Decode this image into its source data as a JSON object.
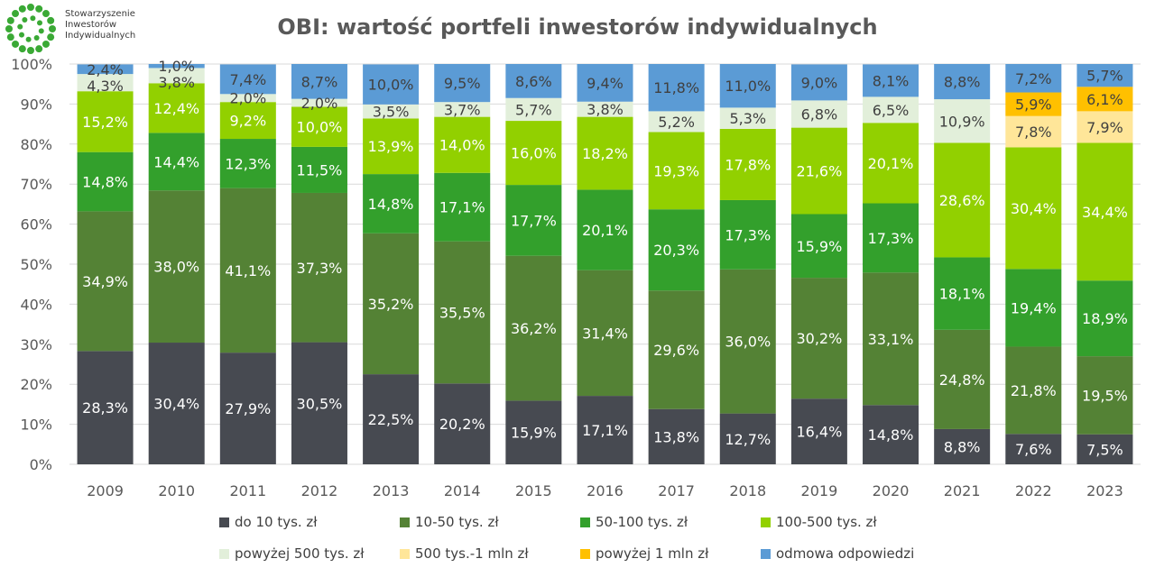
{
  "logo": {
    "text": "Stowarzyszenie Inwestorów Indywidualnych",
    "lines": [
      "Stowarzyszenie",
      "Inwestorów",
      "Indywidualnych"
    ]
  },
  "chart_data": {
    "type": "bar",
    "stacked": true,
    "title": "OBI: wartość portfeli inwestorów indywidualnych",
    "xlabel": "",
    "ylabel": "",
    "ylim": [
      0,
      100
    ],
    "yticks": [
      "0%",
      "10%",
      "20%",
      "30%",
      "40%",
      "50%",
      "60%",
      "70%",
      "80%",
      "90%",
      "100%"
    ],
    "grid": true,
    "legend_position": "bottom",
    "categories": [
      "2009",
      "2010",
      "2011",
      "2012",
      "2013",
      "2014",
      "2015",
      "2016",
      "2017",
      "2018",
      "2019",
      "2020",
      "2021",
      "2022",
      "2023"
    ],
    "series": [
      {
        "name": "do 10 tys. zł",
        "color": "#474a51",
        "label_color": "#ffffff",
        "values": [
          28.3,
          30.4,
          27.9,
          30.5,
          22.5,
          20.2,
          15.9,
          17.1,
          13.8,
          12.7,
          16.4,
          14.8,
          8.8,
          7.6,
          7.5
        ]
      },
      {
        "name": "10-50 tys. zł",
        "color": "#548235",
        "label_color": "#ffffff",
        "values": [
          34.9,
          38.0,
          41.1,
          37.3,
          35.2,
          35.5,
          36.2,
          31.4,
          29.6,
          36.0,
          30.2,
          33.1,
          24.8,
          21.8,
          19.5
        ]
      },
      {
        "name": "50-100 tys. zł",
        "color": "#33a02c",
        "label_color": "#ffffff",
        "values": [
          14.8,
          14.4,
          12.3,
          11.5,
          14.8,
          17.1,
          17.7,
          20.1,
          20.3,
          17.3,
          15.9,
          17.3,
          18.1,
          19.4,
          18.9
        ]
      },
      {
        "name": "100-500 tys. zł",
        "color": "#92d000",
        "label_color": "#ffffff",
        "values": [
          15.2,
          12.4,
          9.2,
          10.0,
          13.9,
          14.0,
          16.0,
          18.2,
          19.3,
          17.8,
          21.6,
          20.1,
          28.6,
          30.4,
          34.4
        ]
      },
      {
        "name": "powyżej 500 tys. zł",
        "color": "#e2efda",
        "label_color": "#404040",
        "values": [
          4.3,
          3.8,
          2.0,
          2.0,
          3.5,
          3.7,
          5.7,
          3.8,
          5.2,
          5.3,
          6.8,
          6.5,
          10.9,
          null,
          null
        ]
      },
      {
        "name": "500 tys.-1 mln zł",
        "color": "#ffe699",
        "label_color": "#404040",
        "values": [
          null,
          null,
          null,
          null,
          null,
          null,
          null,
          null,
          null,
          null,
          null,
          null,
          null,
          7.8,
          7.9
        ]
      },
      {
        "name": "powyżej 1 mln zł",
        "color": "#ffc000",
        "label_color": "#404040",
        "values": [
          null,
          null,
          null,
          null,
          null,
          null,
          null,
          null,
          null,
          null,
          null,
          null,
          null,
          5.9,
          6.1
        ]
      },
      {
        "name": "odmowa odpowiedzi",
        "color": "#5b9bd5",
        "label_color": "#404040",
        "values": [
          2.4,
          1.0,
          7.4,
          8.7,
          10.0,
          9.5,
          8.6,
          9.4,
          11.8,
          11.0,
          9.0,
          8.1,
          8.8,
          7.2,
          5.7
        ]
      }
    ]
  }
}
